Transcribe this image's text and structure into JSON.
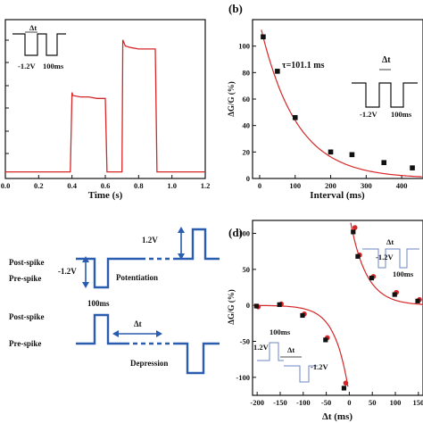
{
  "colors": {
    "curve": "#d62728",
    "pulse_blue": "#2a5db0",
    "marker": "#111111"
  },
  "chart_data": [
    {
      "type": "line",
      "panel_label": "",
      "xlabel": "Time (s)",
      "ylabel": "",
      "xlim": [
        0.0,
        1.2
      ],
      "x_ticks": [
        "0.0",
        "0.2",
        "0.4",
        "0.6",
        "0.8",
        "1.0",
        "1.2"
      ],
      "series": [
        {
          "x": [
            0.0,
            0.39,
            0.4,
            0.405,
            0.45,
            0.5,
            0.55,
            0.6,
            0.61,
            0.7,
            0.705,
            0.72,
            0.75,
            0.8,
            0.85,
            0.9,
            0.91,
            1.2
          ],
          "y": [
            0.02,
            0.02,
            0.55,
            0.53,
            0.52,
            0.52,
            0.51,
            0.51,
            0.02,
            0.02,
            0.9,
            0.86,
            0.85,
            0.84,
            0.84,
            0.84,
            0.02,
            0.02
          ]
        }
      ],
      "inset": {
        "dt_label": "Δt",
        "amp_label": "-1.2V",
        "width_label": "100ms"
      }
    },
    {
      "type": "scatter",
      "panel_label": "(b)",
      "xlabel": "Interval (ms)",
      "ylabel": "ΔG/G (%)",
      "xlim": [
        -20,
        460
      ],
      "ylim": [
        0,
        120
      ],
      "x_ticks": [
        0,
        100,
        200,
        300,
        400
      ],
      "y_ticks": [
        0,
        20,
        40,
        60,
        80,
        100
      ],
      "annotation": "τ=101.1 ms",
      "points": {
        "x": [
          10,
          50,
          100,
          200,
          260,
          350,
          430
        ],
        "y": [
          107,
          81,
          46,
          20,
          18,
          12,
          8
        ]
      },
      "fit": {
        "amplitude": 118,
        "tau": 101.1
      },
      "inset": {
        "dt_label": "Δt",
        "amp_label": "-1.2V",
        "width_label": "100ms"
      }
    },
    {
      "type": "other",
      "panel_label": "",
      "labels": {
        "post_spike_1": "Post-spike",
        "pre_spike_1": "Pre-spike",
        "amp_neg": "-1.2V",
        "amp_pos": "1.2V",
        "potentiation": "Potentiation",
        "width": "100ms",
        "post_spike_2": "Post-spike",
        "pre_spike_2": "Pre-spike",
        "dt": "Δt",
        "depression": "Depression"
      }
    },
    {
      "type": "scatter",
      "panel_label": "(d)",
      "xlabel": "Δt (ms)",
      "ylabel": "ΔG/G (%)",
      "xlim": [
        -210,
        160
      ],
      "ylim": [
        -125,
        118
      ],
      "x_ticks": [
        -200,
        -150,
        -100,
        -50,
        0,
        50,
        100,
        150
      ],
      "y_ticks": [
        -100,
        -50,
        0,
        50,
        100
      ],
      "series": [
        {
          "name": "",
          "color": "#d62728",
          "x": [
            -200,
            -150,
            -100,
            -50,
            -10,
            10,
            20,
            50,
            100,
            150
          ],
          "y": [
            -2,
            2,
            -12,
            -45,
            -108,
            108,
            70,
            40,
            18,
            8
          ]
        },
        {
          "name": "",
          "color": "#111111",
          "x": [
            -200,
            -150,
            -100,
            -50,
            -10,
            10,
            20,
            50,
            100,
            150
          ],
          "y": [
            -1,
            1,
            -14,
            -48,
            -115,
            102,
            68,
            38,
            15,
            6
          ]
        }
      ],
      "fits": [
        {
          "branch": "neg",
          "amplitude": -125,
          "tau": 30,
          "range": [
            -210,
            -3
          ]
        },
        {
          "branch": "pos",
          "amplitude": 125,
          "tau": 35,
          "range": [
            3,
            160
          ]
        }
      ],
      "inset_left": {
        "width_label": "100ms",
        "amp_pos": "1.2V",
        "dt_label": "Δt",
        "amp_neg": "-1.2V"
      },
      "inset_right": {
        "dt_label": "Δt",
        "amp_label": "-1.2V",
        "width_label": "100ms"
      }
    }
  ]
}
